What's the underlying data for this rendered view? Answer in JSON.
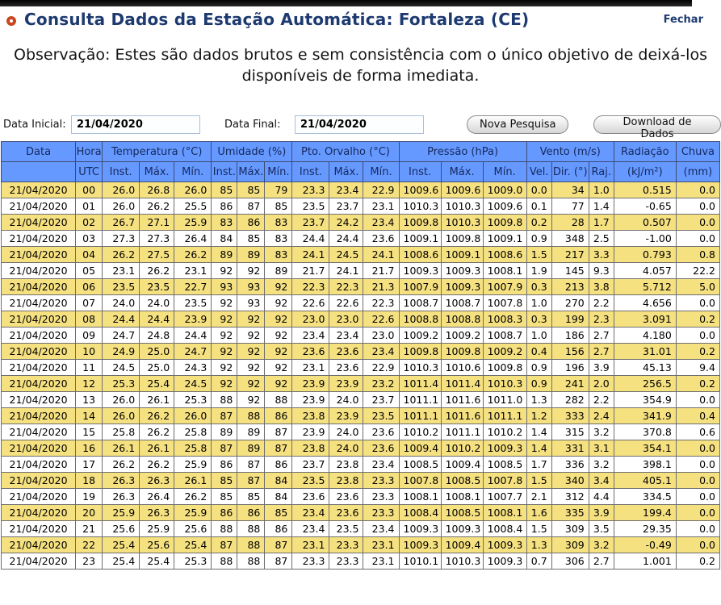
{
  "header": {
    "title": "Consulta Dados da Estação Automática: Fortaleza (CE)",
    "close_label": "Fechar"
  },
  "observation": "Observação: Estes são dados brutos e sem consistência com o único objetivo de deixá-los disponíveis de forma imediata.",
  "form": {
    "start_label": "Data Inicial:",
    "start_value": "21/04/2020",
    "end_label": "Data Final:",
    "end_value": "21/04/2020",
    "buttons": {
      "search": "Nova Pesquisa",
      "download": "Download de Dados"
    }
  },
  "colors": {
    "header_blue": "#6699ff",
    "row_yellow": "#f6e181",
    "title_navy": "#1d3a70",
    "bullet_orange": "#c8471f"
  },
  "table": {
    "header_groups": [
      {
        "label": "Data",
        "colspan": 1
      },
      {
        "label": "Hora",
        "colspan": 1
      },
      {
        "label": "Temperatura (°C)",
        "colspan": 3
      },
      {
        "label": "Umidade (%)",
        "colspan": 3
      },
      {
        "label": "Pto. Orvalho (°C)",
        "colspan": 3
      },
      {
        "label": "Pressão (hPa)",
        "colspan": 3
      },
      {
        "label": "Vento (m/s)",
        "colspan": 3
      },
      {
        "label": "Radiação",
        "colspan": 1
      },
      {
        "label": "Chuva",
        "colspan": 1
      }
    ],
    "subheaders": [
      "",
      "UTC",
      "Inst.",
      "Máx.",
      "Mín.",
      "Inst.",
      "Máx.",
      "Mín.",
      "Inst.",
      "Máx.",
      "Mín.",
      "Inst.",
      "Máx.",
      "Mín.",
      "Vel.",
      "Dir. (°)",
      "Raj.",
      "(kJ/m²)",
      "(mm)"
    ],
    "rows": [
      [
        "21/04/2020",
        "00",
        "26.0",
        "26.8",
        "26.0",
        "85",
        "85",
        "79",
        "23.3",
        "23.4",
        "22.9",
        "1009.6",
        "1009.6",
        "1009.0",
        "0.0",
        "34",
        "1.0",
        "0.515",
        "0.0"
      ],
      [
        "21/04/2020",
        "01",
        "26.0",
        "26.2",
        "25.5",
        "86",
        "87",
        "85",
        "23.5",
        "23.7",
        "23.1",
        "1010.3",
        "1010.3",
        "1009.6",
        "0.1",
        "77",
        "1.4",
        "-0.65",
        "0.0"
      ],
      [
        "21/04/2020",
        "02",
        "26.7",
        "27.1",
        "25.9",
        "83",
        "86",
        "83",
        "23.7",
        "24.2",
        "23.4",
        "1009.8",
        "1010.3",
        "1009.8",
        "0.2",
        "28",
        "1.7",
        "0.507",
        "0.0"
      ],
      [
        "21/04/2020",
        "03",
        "27.3",
        "27.3",
        "26.4",
        "84",
        "85",
        "83",
        "24.4",
        "24.4",
        "23.6",
        "1009.1",
        "1009.8",
        "1009.1",
        "0.9",
        "348",
        "2.5",
        "-1.00",
        "0.0"
      ],
      [
        "21/04/2020",
        "04",
        "26.2",
        "27.5",
        "26.2",
        "89",
        "89",
        "83",
        "24.1",
        "24.5",
        "24.1",
        "1008.6",
        "1009.1",
        "1008.6",
        "1.5",
        "217",
        "3.3",
        "0.793",
        "0.8"
      ],
      [
        "21/04/2020",
        "05",
        "23.1",
        "26.2",
        "23.1",
        "92",
        "92",
        "89",
        "21.7",
        "24.1",
        "21.7",
        "1009.3",
        "1009.3",
        "1008.1",
        "1.9",
        "145",
        "9.3",
        "4.057",
        "22.2"
      ],
      [
        "21/04/2020",
        "06",
        "23.5",
        "23.5",
        "22.7",
        "93",
        "93",
        "92",
        "22.3",
        "22.3",
        "21.3",
        "1007.9",
        "1009.3",
        "1007.9",
        "0.3",
        "213",
        "3.8",
        "5.712",
        "5.0"
      ],
      [
        "21/04/2020",
        "07",
        "24.0",
        "24.0",
        "23.5",
        "92",
        "93",
        "92",
        "22.6",
        "22.6",
        "22.3",
        "1008.7",
        "1008.7",
        "1007.8",
        "1.0",
        "270",
        "2.2",
        "4.656",
        "0.0"
      ],
      [
        "21/04/2020",
        "08",
        "24.4",
        "24.4",
        "23.9",
        "92",
        "92",
        "92",
        "23.0",
        "23.0",
        "22.6",
        "1008.8",
        "1008.8",
        "1008.3",
        "0.3",
        "199",
        "2.3",
        "3.091",
        "0.2"
      ],
      [
        "21/04/2020",
        "09",
        "24.7",
        "24.8",
        "24.4",
        "92",
        "92",
        "92",
        "23.4",
        "23.4",
        "23.0",
        "1009.2",
        "1009.2",
        "1008.7",
        "1.0",
        "186",
        "2.7",
        "4.180",
        "0.0"
      ],
      [
        "21/04/2020",
        "10",
        "24.9",
        "25.0",
        "24.7",
        "92",
        "92",
        "92",
        "23.6",
        "23.6",
        "23.4",
        "1009.8",
        "1009.8",
        "1009.2",
        "0.4",
        "156",
        "2.7",
        "31.01",
        "0.2"
      ],
      [
        "21/04/2020",
        "11",
        "24.5",
        "25.0",
        "24.3",
        "92",
        "92",
        "92",
        "23.1",
        "23.6",
        "22.9",
        "1010.3",
        "1010.6",
        "1009.8",
        "0.9",
        "196",
        "3.9",
        "45.13",
        "9.4"
      ],
      [
        "21/04/2020",
        "12",
        "25.3",
        "25.4",
        "24.5",
        "92",
        "92",
        "92",
        "23.9",
        "23.9",
        "23.2",
        "1011.4",
        "1011.4",
        "1010.3",
        "0.9",
        "241",
        "2.0",
        "256.5",
        "0.2"
      ],
      [
        "21/04/2020",
        "13",
        "26.0",
        "26.1",
        "25.3",
        "88",
        "92",
        "88",
        "23.9",
        "24.0",
        "23.7",
        "1011.1",
        "1011.6",
        "1011.0",
        "1.3",
        "282",
        "2.2",
        "354.9",
        "0.0"
      ],
      [
        "21/04/2020",
        "14",
        "26.0",
        "26.2",
        "26.0",
        "87",
        "88",
        "86",
        "23.8",
        "23.9",
        "23.5",
        "1011.1",
        "1011.6",
        "1011.1",
        "1.2",
        "333",
        "2.4",
        "341.9",
        "0.4"
      ],
      [
        "21/04/2020",
        "15",
        "25.8",
        "26.2",
        "25.8",
        "89",
        "89",
        "87",
        "23.9",
        "24.0",
        "23.6",
        "1010.2",
        "1011.1",
        "1010.2",
        "1.4",
        "315",
        "3.2",
        "370.8",
        "0.6"
      ],
      [
        "21/04/2020",
        "16",
        "26.1",
        "26.1",
        "25.8",
        "87",
        "89",
        "87",
        "23.8",
        "24.0",
        "23.6",
        "1009.4",
        "1010.2",
        "1009.3",
        "1.4",
        "331",
        "3.1",
        "354.1",
        "0.0"
      ],
      [
        "21/04/2020",
        "17",
        "26.2",
        "26.2",
        "25.9",
        "86",
        "87",
        "86",
        "23.7",
        "23.8",
        "23.4",
        "1008.5",
        "1009.4",
        "1008.5",
        "1.7",
        "336",
        "3.2",
        "398.1",
        "0.0"
      ],
      [
        "21/04/2020",
        "18",
        "26.3",
        "26.3",
        "26.1",
        "85",
        "87",
        "84",
        "23.5",
        "23.8",
        "23.3",
        "1007.8",
        "1008.5",
        "1007.8",
        "1.5",
        "340",
        "3.4",
        "405.1",
        "0.0"
      ],
      [
        "21/04/2020",
        "19",
        "26.3",
        "26.4",
        "26.2",
        "85",
        "85",
        "84",
        "23.6",
        "23.6",
        "23.3",
        "1008.1",
        "1008.1",
        "1007.7",
        "2.1",
        "312",
        "4.4",
        "334.5",
        "0.0"
      ],
      [
        "21/04/2020",
        "20",
        "25.9",
        "26.3",
        "25.9",
        "86",
        "86",
        "85",
        "23.4",
        "23.6",
        "23.3",
        "1008.4",
        "1008.5",
        "1008.1",
        "1.6",
        "335",
        "3.9",
        "199.4",
        "0.0"
      ],
      [
        "21/04/2020",
        "21",
        "25.6",
        "25.9",
        "25.6",
        "88",
        "88",
        "86",
        "23.4",
        "23.5",
        "23.4",
        "1009.3",
        "1009.3",
        "1008.4",
        "1.5",
        "309",
        "3.5",
        "29.35",
        "0.0"
      ],
      [
        "21/04/2020",
        "22",
        "25.4",
        "25.6",
        "25.4",
        "87",
        "88",
        "87",
        "23.1",
        "23.3",
        "23.1",
        "1009.3",
        "1009.4",
        "1009.3",
        "1.3",
        "309",
        "3.2",
        "-0.49",
        "0.0"
      ],
      [
        "21/04/2020",
        "23",
        "25.4",
        "25.4",
        "25.3",
        "88",
        "88",
        "87",
        "23.3",
        "23.3",
        "23.1",
        "1010.1",
        "1010.3",
        "1009.3",
        "0.7",
        "306",
        "2.7",
        "1.001",
        "0.2"
      ]
    ]
  }
}
